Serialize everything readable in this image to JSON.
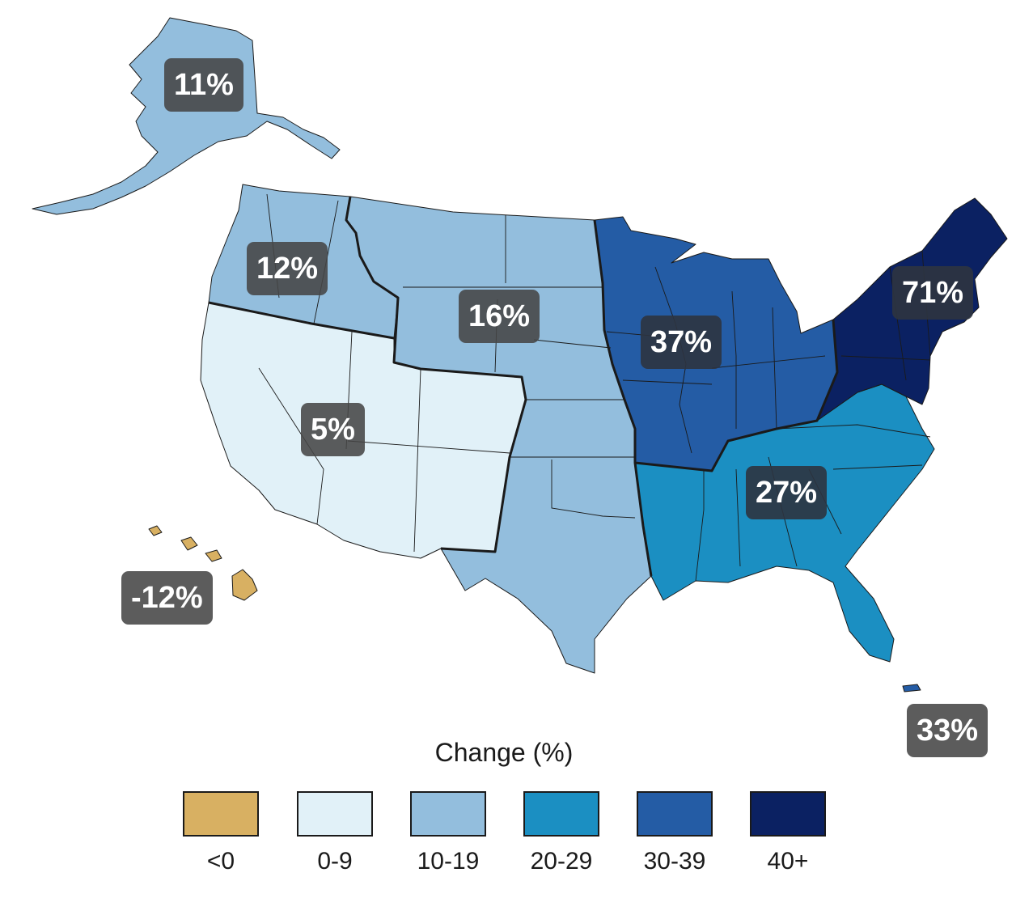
{
  "regions": [
    {
      "id": "alaska",
      "change": "11%",
      "value": 11,
      "color": "#93bedd"
    },
    {
      "id": "northwest",
      "change": "12%",
      "value": 12,
      "color": "#93bedd"
    },
    {
      "id": "northern-great-plains",
      "change": "16%",
      "value": 16,
      "color": "#93bedd"
    },
    {
      "id": "southwest",
      "change": "5%",
      "value": 5,
      "color": "#e1f1f8"
    },
    {
      "id": "midwest",
      "change": "37%",
      "value": 37,
      "color": "#245ca5"
    },
    {
      "id": "northeast",
      "change": "71%",
      "value": 71,
      "color": "#0b2162"
    },
    {
      "id": "southeast",
      "change": "27%",
      "value": 27,
      "color": "#1b8fc2"
    },
    {
      "id": "southern-great-plains",
      "change": "",
      "value": null,
      "color": "#93bedd"
    },
    {
      "id": "hawaii",
      "change": "-12%",
      "value": -12,
      "color": "#d8b062"
    },
    {
      "id": "puerto-rico",
      "change": "33%",
      "value": 33,
      "color": "#245ca5"
    }
  ],
  "legend": {
    "title": "Change (%)",
    "items": [
      {
        "label": "<0",
        "color": "#d8b062"
      },
      {
        "label": "0-9",
        "color": "#e1f1f8"
      },
      {
        "label": "10-19",
        "color": "#93bedd"
      },
      {
        "label": "20-29",
        "color": "#1b8fc2"
      },
      {
        "label": "30-39",
        "color": "#245ca5"
      },
      {
        "label": "40+",
        "color": "#0b2162"
      }
    ]
  }
}
